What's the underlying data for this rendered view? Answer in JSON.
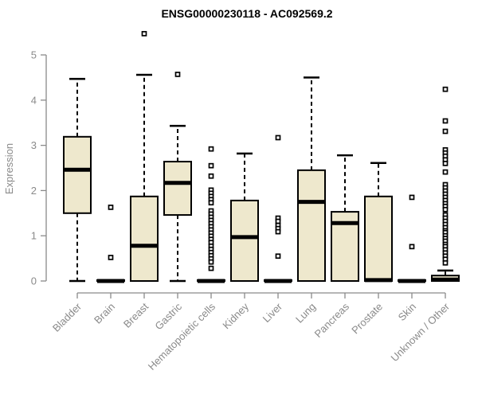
{
  "window": {
    "title": "ENSG00000230118 - AC092569.2"
  },
  "colors": {
    "background": "#ffffff",
    "axis": "#8a8a8a",
    "label": "#8a8a8a",
    "title": "#000000",
    "box_fill": "#EEE8CD",
    "box_stroke": "#000000",
    "outlier_fill": "#ffffff"
  },
  "chart_data": {
    "type": "boxplot",
    "title": "ENSG00000230118 - AC092569.2",
    "xlabel": "",
    "ylabel": "Expression",
    "ylim": [
      0,
      5
    ],
    "yticks": [
      0,
      1,
      2,
      3,
      4,
      5
    ],
    "grid": false,
    "legend": "none",
    "categories": [
      "Bladder",
      "Brain",
      "Breast",
      "Gastric",
      "Hematopoietic cells",
      "Kidney",
      "Liver",
      "Lung",
      "Pancreas",
      "Prostate",
      "Skin",
      "Unknown / Other"
    ],
    "series": [
      {
        "name": "Bladder",
        "whisker_low": 0,
        "q1": 1.5,
        "median": 2.46,
        "q3": 3.19,
        "whisker_high": 4.47,
        "outliers": []
      },
      {
        "name": "Brain",
        "whisker_low": 0,
        "q1": 0,
        "median": 0,
        "q3": 0.02,
        "whisker_high": 0.02,
        "outliers": [
          1.63,
          0.52
        ]
      },
      {
        "name": "Breast",
        "whisker_low": 0,
        "q1": 0,
        "median": 0.78,
        "q3": 1.87,
        "whisker_high": 4.56,
        "outliers": [
          5.47
        ]
      },
      {
        "name": "Gastric",
        "whisker_low": 0,
        "q1": 1.46,
        "median": 2.17,
        "q3": 2.64,
        "whisker_high": 3.43,
        "outliers": [
          4.57
        ]
      },
      {
        "name": "Hematopoietic cells",
        "whisker_low": 0,
        "q1": 0,
        "median": 0,
        "q3": 0.02,
        "whisker_high": 0.02,
        "outliers": [
          2.92,
          2.55,
          2.32,
          2.01,
          1.94,
          1.87,
          1.8,
          1.73,
          1.55,
          1.48,
          1.41,
          1.34,
          1.27,
          1.2,
          1.13,
          1.06,
          0.99,
          0.92,
          0.85,
          0.77,
          0.7,
          0.63,
          0.56,
          0.49,
          0.42,
          0.28
        ]
      },
      {
        "name": "Kidney",
        "whisker_low": 0,
        "q1": 0,
        "median": 0.97,
        "q3": 1.78,
        "whisker_high": 2.82,
        "outliers": []
      },
      {
        "name": "Liver",
        "whisker_low": 0,
        "q1": 0,
        "median": 0,
        "q3": 0.02,
        "whisker_high": 0.02,
        "outliers": [
          3.17,
          1.39,
          1.32,
          1.23,
          1.16,
          1.09,
          0.55
        ]
      },
      {
        "name": "Lung",
        "whisker_low": 0,
        "q1": 0,
        "median": 1.75,
        "q3": 2.45,
        "whisker_high": 4.5,
        "outliers": []
      },
      {
        "name": "Pancreas",
        "whisker_low": 0,
        "q1": 0,
        "median": 1.28,
        "q3": 1.53,
        "whisker_high": 2.78,
        "outliers": []
      },
      {
        "name": "Prostate",
        "whisker_low": 0,
        "q1": 0,
        "median": 0.02,
        "q3": 1.87,
        "whisker_high": 2.61,
        "outliers": []
      },
      {
        "name": "Skin",
        "whisker_low": 0,
        "q1": 0,
        "median": 0,
        "q3": 0.02,
        "whisker_high": 0.02,
        "outliers": [
          1.85,
          0.76
        ]
      },
      {
        "name": "Unknown / Other",
        "whisker_low": 0,
        "q1": 0,
        "median": 0.03,
        "q3": 0.12,
        "whisker_high": 0.23,
        "outliers": [
          4.24,
          3.54,
          3.31,
          2.9,
          2.83,
          2.76,
          2.68,
          2.6,
          2.41,
          2.13,
          2.06,
          1.99,
          1.92,
          1.85,
          1.78,
          1.71,
          1.65,
          1.58,
          1.46,
          1.39,
          1.32,
          1.25,
          1.18,
          1.11,
          1.07,
          1.0,
          0.94,
          0.88,
          0.81,
          0.76,
          0.69,
          0.62,
          0.55,
          0.48,
          0.4
        ]
      }
    ]
  }
}
